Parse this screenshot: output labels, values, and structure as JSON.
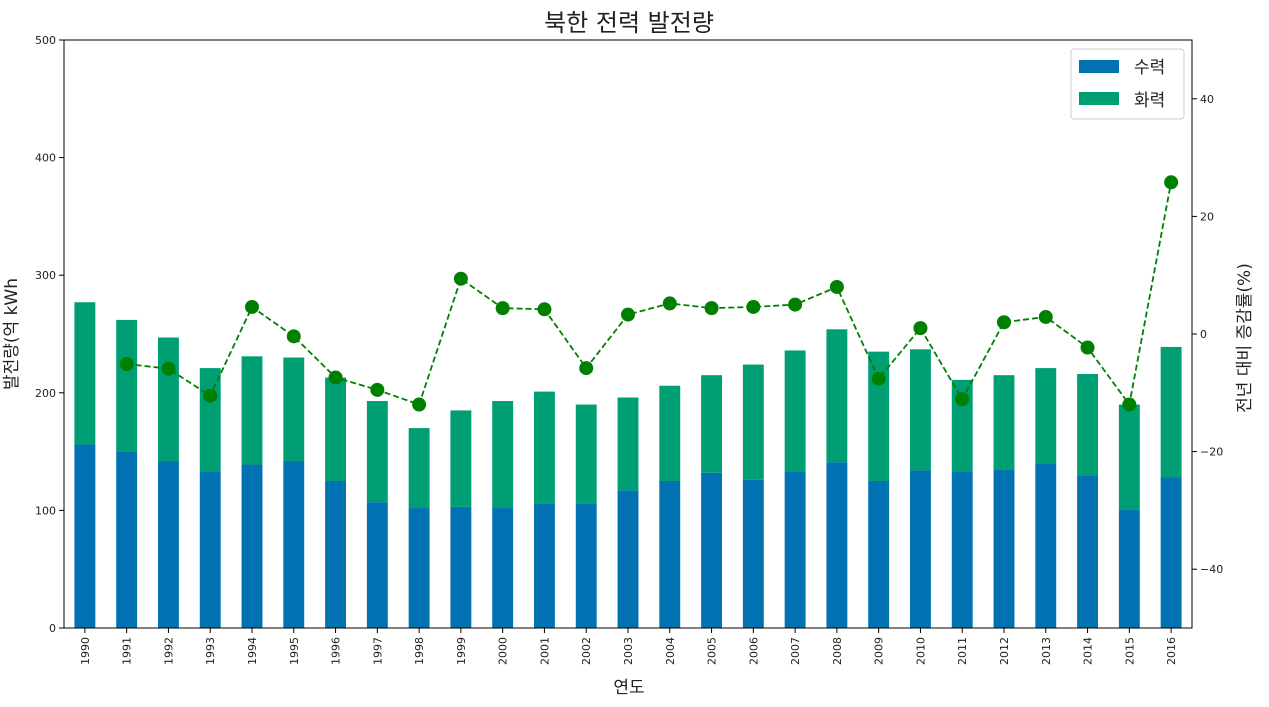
{
  "chart_data": {
    "type": "bar",
    "stacked": true,
    "title": "북한 전력 발전량",
    "xlabel": "연도",
    "ylabel": "발전량(억 kWh",
    "y2label": "전년 대비 증감률(%)",
    "ylim": [
      0,
      500
    ],
    "yticks": [
      0,
      100,
      200,
      300,
      400,
      500
    ],
    "y2lim": [
      -50,
      50
    ],
    "y2ticks": [
      -40,
      -20,
      0,
      20,
      40
    ],
    "grid": false,
    "legend_position": "top-right",
    "categories": [
      "1990",
      "1991",
      "1992",
      "1993",
      "1994",
      "1995",
      "1996",
      "1997",
      "1998",
      "1999",
      "2000",
      "2001",
      "2002",
      "2003",
      "2004",
      "2005",
      "2006",
      "2007",
      "2008",
      "2009",
      "2010",
      "2011",
      "2012",
      "2013",
      "2014",
      "2015",
      "2016"
    ],
    "series": [
      {
        "name": "수력",
        "color": "#0072b2",
        "values": [
          156,
          150,
          142,
          133,
          139,
          142,
          125,
          107,
          102,
          103,
          102,
          106,
          106,
          117,
          125,
          132,
          126,
          133,
          141,
          125,
          134,
          133,
          135,
          140,
          130,
          101,
          128
        ]
      },
      {
        "name": "화력",
        "color": "#009e73",
        "values": [
          121,
          112,
          105,
          88,
          92,
          88,
          88,
          86,
          68,
          82,
          91,
          95,
          84,
          79,
          81,
          83,
          98,
          103,
          113,
          110,
          103,
          78,
          80,
          81,
          86,
          89,
          111
        ]
      }
    ],
    "line_series": {
      "name": "전년 대비 증감률",
      "axis": "right",
      "color": "#008000",
      "style": "dashed",
      "x": [
        "1991",
        "1992",
        "1993",
        "1994",
        "1995",
        "1996",
        "1997",
        "1998",
        "1999",
        "2000",
        "2001",
        "2002",
        "2003",
        "2004",
        "2005",
        "2006",
        "2007",
        "2008",
        "2009",
        "2010",
        "2011",
        "2012",
        "2013",
        "2014",
        "2015",
        "2016"
      ],
      "values": [
        -5.1,
        -5.9,
        -10.5,
        4.6,
        -0.4,
        -7.4,
        -9.5,
        -12.0,
        9.4,
        4.4,
        4.2,
        -5.8,
        3.3,
        5.2,
        4.4,
        4.6,
        5.0,
        8.0,
        -7.6,
        1.0,
        -11.1,
        2.0,
        2.9,
        -2.3,
        -12.0,
        25.8
      ]
    }
  }
}
